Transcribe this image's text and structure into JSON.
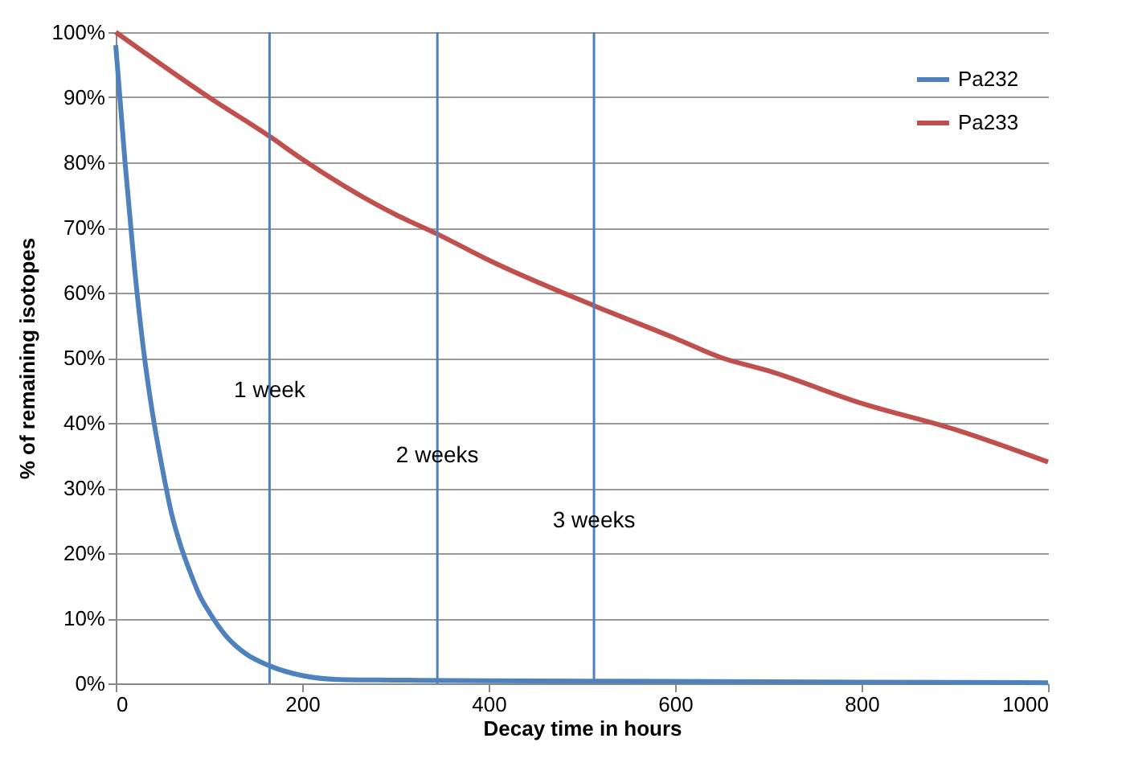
{
  "chart_data": {
    "type": "line",
    "xlabel": "Decay time in hours",
    "ylabel": "% of remaining isotopes",
    "xlim": [
      0,
      1000
    ],
    "xticks": [
      0,
      200,
      400,
      600,
      800,
      1000
    ],
    "ylim": [
      0,
      100
    ],
    "yticks": [
      {
        "value": 0,
        "label": "0%"
      },
      {
        "value": 10,
        "label": "10%"
      },
      {
        "value": 20,
        "label": "20%"
      },
      {
        "value": 30,
        "label": "30%"
      },
      {
        "value": 40,
        "label": "40%"
      },
      {
        "value": 50,
        "label": "50%"
      },
      {
        "value": 60,
        "label": "60%"
      },
      {
        "value": 70,
        "label": "70%"
      },
      {
        "value": 80,
        "label": "80%"
      },
      {
        "value": 90,
        "label": "90%"
      },
      {
        "value": 100,
        "label": "100%"
      }
    ],
    "grid": "y",
    "legend": "top right",
    "series": [
      {
        "name": "Pa232",
        "color": "#4f81bd",
        "x": [
          0,
          10,
          20,
          30,
          40,
          50,
          60,
          70,
          80,
          90,
          100,
          120,
          140,
          165,
          200,
          240,
          300,
          400,
          600,
          800,
          1000
        ],
        "values": [
          98,
          80,
          64,
          51,
          41,
          33,
          26,
          21,
          17,
          13.5,
          11,
          7,
          4.5,
          2.7,
          1.2,
          0.6,
          0.5,
          0.4,
          0.3,
          0.2,
          0.1
        ]
      },
      {
        "name": "Pa233",
        "color": "#c0504d",
        "x": [
          0,
          100,
          165,
          200,
          300,
          345,
          400,
          513,
          600,
          650,
          700,
          800,
          900,
          1000
        ],
        "values": [
          100,
          90,
          84,
          80.5,
          72,
          69,
          65,
          58,
          53,
          50,
          48,
          43,
          39,
          34
        ]
      }
    ],
    "ref_lines": [
      {
        "axis": "x",
        "value": 165,
        "color": "#4f81bd"
      },
      {
        "axis": "x",
        "value": 345,
        "color": "#4f81bd"
      },
      {
        "axis": "x",
        "value": 513,
        "color": "#4f81bd"
      }
    ],
    "annotations": [
      {
        "text": "1 week",
        "x": 165,
        "y": 45
      },
      {
        "text": "2 weeks",
        "x": 345,
        "y": 35
      },
      {
        "text": "3 weeks",
        "x": 513,
        "y": 25
      }
    ]
  }
}
